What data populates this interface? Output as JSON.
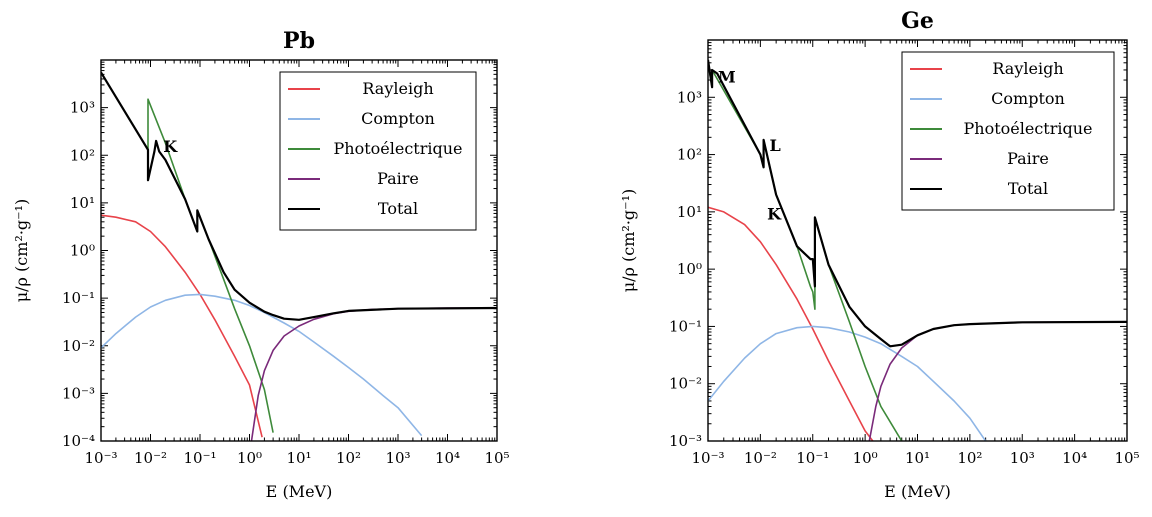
{
  "chart_data": [
    {
      "type": "line",
      "title": "Pb",
      "xlabel": "E (MeV)",
      "ylabel": "μ/ρ (cm²·g⁻¹)",
      "xscale": "log",
      "yscale": "log",
      "xlim": [
        0.001,
        100000
      ],
      "ylim": [
        0.0001,
        10000
      ],
      "xticks": [
        "10⁻³",
        "10⁻²",
        "10⁻¹",
        "10⁰",
        "10¹",
        "10²",
        "10³",
        "10⁴",
        "10⁵"
      ],
      "yticks": [
        "10⁻⁴",
        "10⁻³",
        "10⁻²",
        "10⁻¹",
        "10⁰",
        "10¹",
        "10²",
        "10³"
      ],
      "legend_position": "top-right",
      "annotations": [
        {
          "text": "K",
          "x": 0.015,
          "y": 150
        }
      ],
      "series": [
        {
          "name": "Rayleigh",
          "color": "#e8434a",
          "x": [
            0.001,
            0.002,
            0.005,
            0.01,
            0.02,
            0.05,
            0.1,
            0.2,
            0.5,
            1,
            1.8
          ],
          "y": [
            5.5,
            5,
            4,
            2.5,
            1.2,
            0.35,
            0.12,
            0.035,
            0.006,
            0.0015,
            0.00012
          ]
        },
        {
          "name": "Compton",
          "color": "#8fb6e6",
          "x": [
            0.001,
            0.002,
            0.005,
            0.01,
            0.02,
            0.05,
            0.1,
            0.2,
            0.5,
            1,
            2,
            5,
            10,
            20,
            50,
            100,
            200,
            500,
            1000,
            3000
          ],
          "y": [
            0.009,
            0.018,
            0.04,
            0.065,
            0.09,
            0.115,
            0.12,
            0.11,
            0.09,
            0.07,
            0.05,
            0.03,
            0.02,
            0.012,
            0.006,
            0.0035,
            0.002,
            0.0009,
            0.0005,
            0.00013
          ]
        },
        {
          "name": "Photoélectrique",
          "color": "#3e8a3a",
          "x": [
            0.001,
            0.0089,
            0.0089,
            0.02,
            0.05,
            0.088,
            0.088,
            0.15,
            0.3,
            0.5,
            1,
            2,
            3
          ],
          "y": [
            5500,
            130,
            1500,
            180,
            12,
            2.5,
            7,
            1.7,
            0.25,
            0.06,
            0.01,
            0.0012,
            0.00015
          ]
        },
        {
          "name": "Paire",
          "color": "#7a2a7a",
          "x": [
            1.1,
            1.5,
            2,
            3,
            5,
            10,
            20,
            50,
            100,
            300,
            1000,
            10000,
            100000
          ],
          "y": [
            0.0001,
            0.0009,
            0.003,
            0.008,
            0.016,
            0.026,
            0.036,
            0.047,
            0.053,
            0.058,
            0.06,
            0.062,
            0.062
          ]
        },
        {
          "name": "Total",
          "color": "#000000",
          "x": [
            0.001,
            0.0089,
            0.0089,
            0.012,
            0.013,
            0.015,
            0.02,
            0.05,
            0.088,
            0.088,
            0.15,
            0.3,
            0.5,
            1,
            2,
            3,
            5,
            10,
            20,
            50,
            100,
            1000,
            100000
          ],
          "y": [
            5500,
            130,
            30,
            120,
            200,
            120,
            80,
            12,
            2.5,
            7,
            1.7,
            0.35,
            0.15,
            0.08,
            0.052,
            0.044,
            0.037,
            0.035,
            0.04,
            0.048,
            0.054,
            0.06,
            0.062
          ]
        }
      ]
    },
    {
      "type": "line",
      "title": "Ge",
      "xlabel": "E (MeV)",
      "ylabel": "μ/ρ (cm²·g⁻¹)",
      "xscale": "log",
      "yscale": "log",
      "xlim": [
        0.001,
        100000
      ],
      "ylim": [
        0.001,
        10000
      ],
      "xticks": [
        "10⁻³",
        "10⁻²",
        "10⁻¹",
        "10⁰",
        "10¹",
        "10²",
        "10³",
        "10⁴",
        "10⁵"
      ],
      "yticks": [
        "10⁻³",
        "10⁻²",
        "10⁻¹",
        "10⁰",
        "10¹",
        "10²",
        "10³"
      ],
      "legend_position": "top-right",
      "annotations": [
        {
          "text": "M",
          "x": 0.0013,
          "y": 2200
        },
        {
          "text": "L",
          "x": 0.0125,
          "y": 140
        },
        {
          "text": "K",
          "x": 0.0113,
          "y": 9
        }
      ],
      "series": [
        {
          "name": "Rayleigh",
          "color": "#e8434a",
          "x": [
            0.001,
            0.002,
            0.005,
            0.01,
            0.02,
            0.05,
            0.1,
            0.2,
            0.5,
            1,
            1.4
          ],
          "y": [
            12,
            10,
            6,
            3,
            1.2,
            0.3,
            0.09,
            0.025,
            0.005,
            0.0015,
            0.001
          ]
        },
        {
          "name": "Compton",
          "color": "#8fb6e6",
          "x": [
            0.001,
            0.002,
            0.005,
            0.01,
            0.02,
            0.05,
            0.1,
            0.2,
            0.5,
            1,
            2,
            5,
            10,
            20,
            50,
            100,
            200
          ],
          "y": [
            0.005,
            0.011,
            0.028,
            0.05,
            0.075,
            0.095,
            0.1,
            0.095,
            0.08,
            0.065,
            0.05,
            0.03,
            0.02,
            0.011,
            0.005,
            0.0025,
            0.001
          ]
        },
        {
          "name": "Photoélectrique",
          "color": "#3e8a3a",
          "x": [
            0.001,
            0.0012,
            0.0012,
            0.01,
            0.0115,
            0.0115,
            0.02,
            0.05,
            0.09,
            0.1,
            0.11,
            0.11,
            0.2,
            0.5,
            1,
            2,
            5
          ],
          "y": [
            4000,
            1500,
            3000,
            100,
            60,
            180,
            20,
            2.5,
            0.5,
            0.4,
            0.2,
            8,
            1.2,
            0.12,
            0.02,
            0.004,
            0.001
          ]
        },
        {
          "name": "Paire",
          "color": "#7a2a7a",
          "x": [
            1.2,
            1.6,
            2,
            3,
            5,
            10,
            20,
            50,
            100,
            1000,
            100000
          ],
          "y": [
            0.001,
            0.004,
            0.009,
            0.022,
            0.042,
            0.07,
            0.09,
            0.105,
            0.11,
            0.118,
            0.12
          ]
        },
        {
          "name": "Total",
          "color": "#000000",
          "x": [
            0.001,
            0.0012,
            0.0012,
            0.0015,
            0.01,
            0.0115,
            0.0115,
            0.02,
            0.05,
            0.09,
            0.1,
            0.11,
            0.11,
            0.2,
            0.5,
            1,
            2,
            3,
            5,
            10,
            20,
            50,
            100,
            1000,
            100000
          ],
          "y": [
            4500,
            1500,
            3000,
            2600,
            100,
            60,
            180,
            20,
            2.5,
            1.5,
            1.5,
            0.5,
            8,
            1.2,
            0.22,
            0.1,
            0.06,
            0.045,
            0.048,
            0.07,
            0.09,
            0.105,
            0.11,
            0.118,
            0.12
          ]
        }
      ]
    }
  ]
}
